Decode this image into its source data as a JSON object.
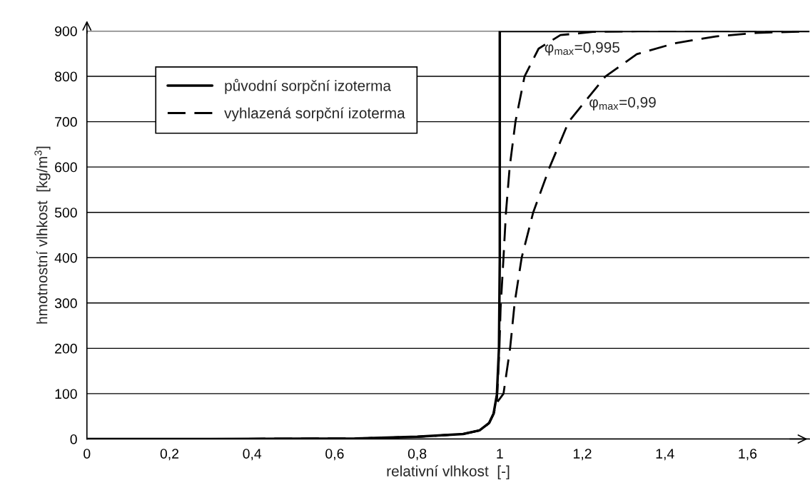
{
  "chart_data": {
    "type": "line",
    "xlabel": "relativní vlhkost  [-]",
    "ylabel": "hmotnostní vlhkost  [kg/m$^{3}$]",
    "xlim": [
      0,
      1.75
    ],
    "ylim": [
      0,
      900
    ],
    "xticks": [
      0,
      {
        "value": 0.2,
        "label": "0,2"
      },
      {
        "value": 0.4,
        "label": "0,4"
      },
      {
        "value": 0.6,
        "label": "0,6"
      },
      {
        "value": 0.8,
        "label": "0,8"
      },
      1,
      {
        "value": 1.2,
        "label": "1,2"
      },
      {
        "value": 1.4,
        "label": "1,4"
      },
      {
        "value": 1.6,
        "label": "1,6"
      }
    ],
    "yticks": [
      0,
      100,
      200,
      300,
      400,
      500,
      600,
      700,
      800,
      900
    ],
    "grid": "y",
    "legend": "top left",
    "marker": "none",
    "series": [
      {
        "name": "původní sorpční izoterma",
        "color": "#000000",
        "line_style": "solid",
        "x": [
          0,
          0.3,
          0.652,
          0.8,
          0.911,
          0.951,
          0.974,
          0.985,
          0.993,
          0.998,
          1,
          1,
          1.75
        ],
        "values": [
          0,
          0,
          1,
          5,
          11,
          19,
          35,
          56,
          98,
          200,
          400,
          900,
          900
        ]
      },
      {
        "name": "vyhlazená sorpční izoterma",
        "color": "#000000",
        "line_style": "dashed",
        "x": [
          0,
          0.3,
          0.652,
          0.8,
          0.911,
          0.951,
          0.974,
          0.985,
          0.993,
          0.999,
          1.002,
          1.009,
          1.015,
          1.024,
          1.038,
          1.06,
          1.094,
          1.147,
          1.226,
          1.35,
          1.5,
          1.75
        ],
        "values": [
          0,
          0,
          1,
          5,
          11,
          19,
          35,
          56,
          84,
          199,
          289,
          400,
          500,
          600,
          700,
          800,
          861,
          891,
          898,
          900,
          900,
          900
        ]
      },
      {
        "color": "#000000",
        "line_style": "dashed",
        "x": [
          0,
          0.3,
          0.652,
          0.8,
          0.911,
          0.951,
          0.974,
          0.985,
          0.993,
          1.009,
          1.025,
          1.036,
          1.053,
          1.081,
          1.121,
          1.167,
          1.256,
          1.332,
          1.424,
          1.523,
          1.622,
          1.741
        ],
        "values": [
          0,
          0,
          1,
          5,
          11,
          19,
          35,
          56,
          80,
          100,
          200,
          300,
          400,
          500,
          600,
          700,
          800,
          849,
          873,
          888,
          896,
          899
        ]
      }
    ],
    "annotations": [
      {
        "text": "φ$_{max}$=0,995",
        "x": 1.108,
        "y": 861
      },
      {
        "text": "φ$_{max}$=0,99",
        "x": 1.216,
        "y": 740
      }
    ]
  }
}
